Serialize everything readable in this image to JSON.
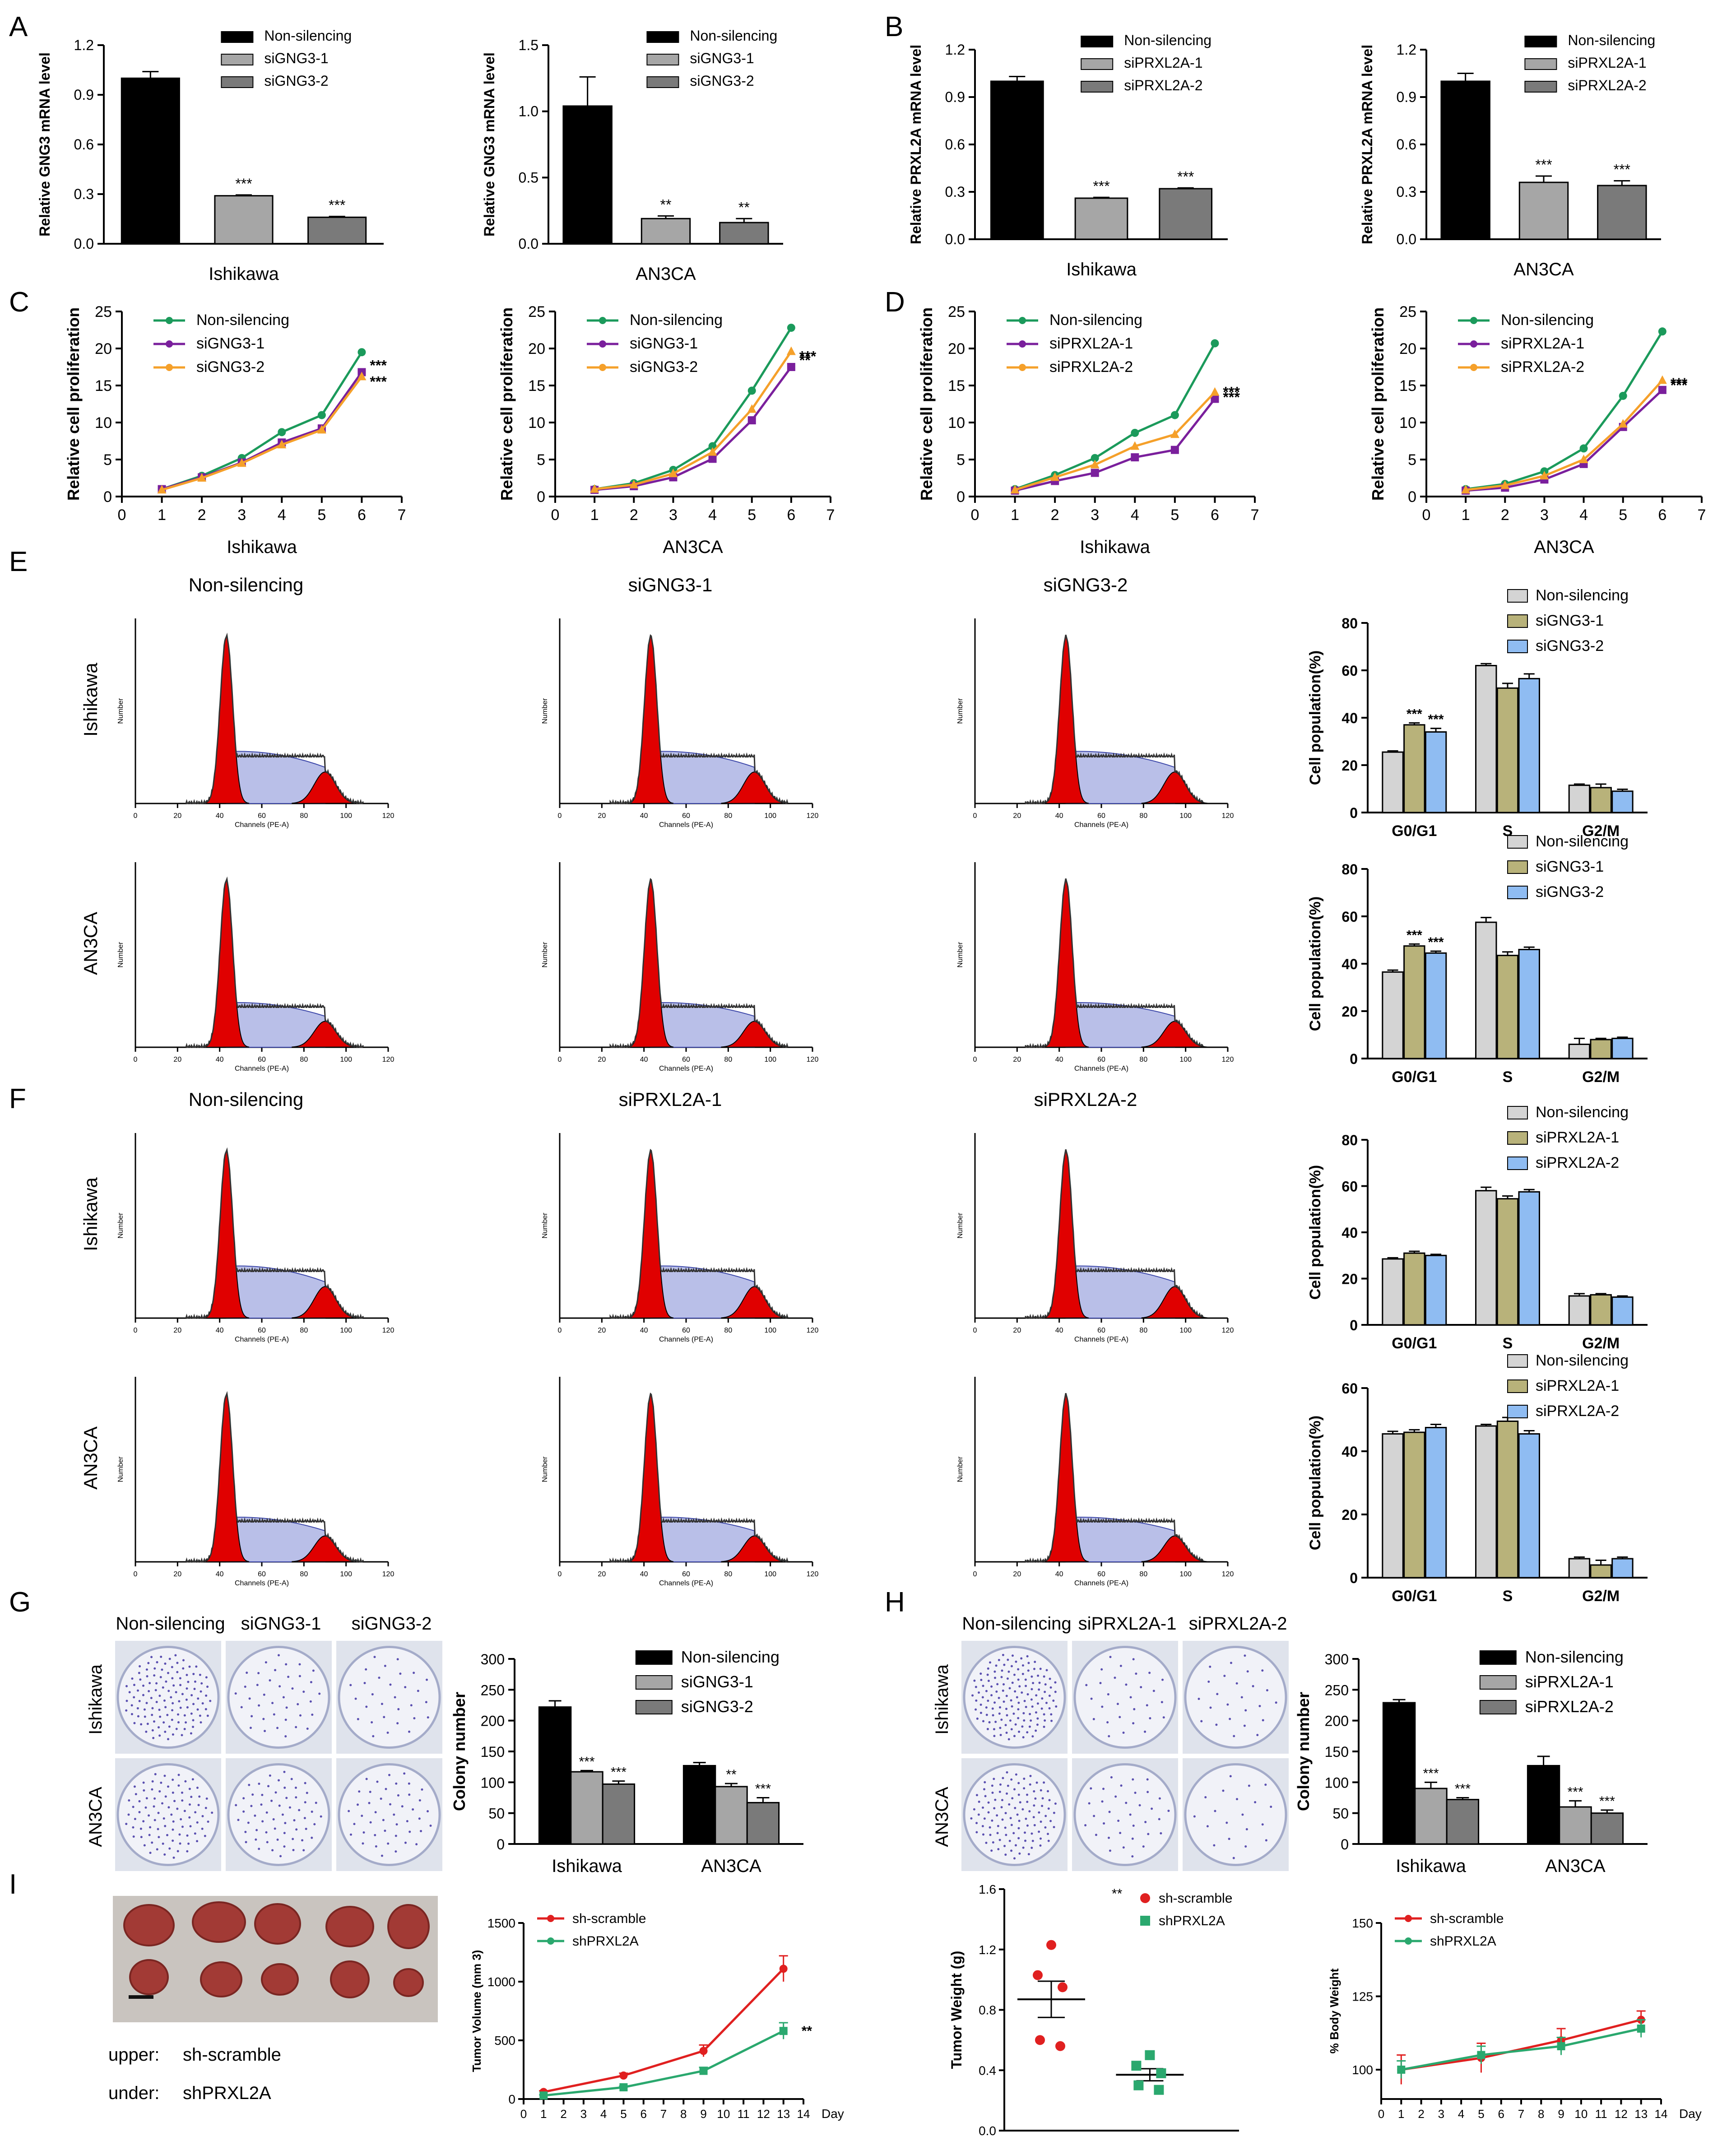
{
  "colors": {
    "black": "#000000",
    "light_gray": "#a6a6a6",
    "mid_gray": "#7a7a7a",
    "green": "#1b9a5b",
    "purple": "#7a1f9c",
    "orange": "#f5a02a",
    "cc_gray": "#d4d4d4",
    "cc_olive": "#b8b27a",
    "cc_blue": "#8fbcf2",
    "red": "#e02020",
    "teal_green": "#2aa86e",
    "histo_red": "#e00000",
    "histo_blue": "#b9bfe8"
  },
  "panel_letters": {
    "a": "A",
    "b": "B",
    "c": "C",
    "d": "D",
    "e": "E",
    "f": "F",
    "g": "G",
    "h": "H",
    "i": "I"
  },
  "panel_A": {
    "legend": [
      "Non-silencing",
      "siGNG3-1",
      "siGNG3-2"
    ],
    "charts": [
      {
        "ylabel": "Relative GNG3 mRNA level",
        "xlabel": "Ishikawa",
        "ticks": [
          "0.0",
          "0.3",
          "0.6",
          "0.9",
          "1.2"
        ],
        "ymax": 1.2,
        "values": [
          1.0,
          0.29,
          0.16
        ],
        "errors": [
          0.04,
          0.005,
          0.005
        ],
        "sig": [
          "",
          "***",
          "***"
        ]
      },
      {
        "ylabel": "Relative GNG3 mRNA level",
        "xlabel": "AN3CA",
        "ticks": [
          "0.0",
          "0.5",
          "1.0",
          "1.5"
        ],
        "ymax": 1.5,
        "values": [
          1.04,
          0.19,
          0.16
        ],
        "errors": [
          0.22,
          0.02,
          0.03
        ],
        "sig": [
          "",
          "**",
          "**"
        ]
      }
    ]
  },
  "panel_B": {
    "legend": [
      "Non-silencing",
      "siPRXL2A-1",
      "siPRXL2A-2"
    ],
    "charts": [
      {
        "ylabel": "Relative PRXL2A mRNA level",
        "xlabel": "Ishikawa",
        "ticks": [
          "0.0",
          "0.3",
          "0.6",
          "0.9",
          "1.2"
        ],
        "ymax": 1.2,
        "values": [
          1.0,
          0.26,
          0.32
        ],
        "errors": [
          0.03,
          0.005,
          0.005
        ],
        "sig": [
          "",
          "***",
          "***"
        ]
      },
      {
        "ylabel": "Relative PRXL2A mRNA level",
        "xlabel": "AN3CA",
        "ticks": [
          "0.0",
          "0.3",
          "0.6",
          "0.9",
          "1.2"
        ],
        "ymax": 1.2,
        "values": [
          1.0,
          0.36,
          0.34
        ],
        "errors": [
          0.05,
          0.04,
          0.03
        ],
        "sig": [
          "",
          "***",
          "***"
        ]
      }
    ]
  },
  "panel_C": {
    "legend": [
      "Non-silencing",
      "siGNG3-1",
      "siGNG3-2"
    ],
    "ylabel": "Relative cell proliferation",
    "charts": [
      {
        "xlabel": "Ishikawa",
        "yticks": [
          "0",
          "5",
          "10",
          "15",
          "20",
          "25"
        ],
        "xticks": [
          "0",
          "1",
          "2",
          "3",
          "4",
          "5",
          "6",
          "7"
        ],
        "ymax": 25,
        "series": [
          [
            1,
            2.8,
            5.2,
            8.7,
            11,
            19.5
          ],
          [
            1,
            2.6,
            4.6,
            7.3,
            9.2,
            16.8
          ],
          [
            0.9,
            2.5,
            4.5,
            7.0,
            9.0,
            16.2
          ]
        ],
        "sig": [
          "***",
          "***"
        ]
      },
      {
        "xlabel": "AN3CA",
        "yticks": [
          "0",
          "5",
          "10",
          "15",
          "20",
          "25"
        ],
        "xticks": [
          "0",
          "1",
          "2",
          "3",
          "4",
          "5",
          "6",
          "7"
        ],
        "ymax": 25,
        "series": [
          [
            1,
            1.8,
            3.6,
            6.8,
            14.3,
            22.8
          ],
          [
            0.9,
            1.4,
            2.6,
            5.1,
            10.3,
            17.5
          ],
          [
            1,
            1.6,
            3.1,
            6.0,
            11.8,
            19.6
          ]
        ],
        "sig": [
          "**",
          "***"
        ]
      }
    ]
  },
  "panel_D": {
    "legend": [
      "Non-silencing",
      "siPRXL2A-1",
      "siPRXL2A-2"
    ],
    "ylabel": "Relative cell proliferation",
    "charts": [
      {
        "xlabel": "Ishikawa",
        "yticks": [
          "0",
          "5",
          "10",
          "15",
          "20",
          "25"
        ],
        "xticks": [
          "0",
          "1",
          "2",
          "3",
          "4",
          "5",
          "6",
          "7"
        ],
        "ymax": 25,
        "series": [
          [
            1,
            2.9,
            5.2,
            8.6,
            11,
            20.7
          ],
          [
            0.8,
            2.1,
            3.2,
            5.3,
            6.3,
            13.2
          ],
          [
            0.9,
            2.6,
            4.3,
            6.8,
            8.4,
            14.1
          ]
        ],
        "sig": [
          "***",
          "***"
        ]
      },
      {
        "xlabel": "AN3CA",
        "yticks": [
          "0",
          "5",
          "10",
          "15",
          "20",
          "25"
        ],
        "xticks": [
          "0",
          "1",
          "2",
          "3",
          "4",
          "5",
          "6",
          "7"
        ],
        "ymax": 25,
        "series": [
          [
            1,
            1.7,
            3.4,
            6.5,
            13.6,
            22.3
          ],
          [
            0.8,
            1.2,
            2.3,
            4.4,
            9.4,
            14.4
          ],
          [
            0.9,
            1.5,
            2.8,
            5.0,
            9.8,
            15.7
          ]
        ],
        "sig": [
          "***",
          "***"
        ]
      }
    ]
  },
  "panel_E": {
    "titles": [
      "Non-silencing",
      "siGNG3-1",
      "siGNG3-2"
    ],
    "rows": [
      "Ishikawa",
      "AN3CA"
    ],
    "histo_xlabel": "Channels (PE-A)",
    "histo_ylabel": "Number",
    "histo_xticks": [
      "0",
      "20",
      "40",
      "60",
      "80",
      "100",
      "120"
    ],
    "legend": [
      "Non-silencing",
      "siGNG3-1",
      "siGNG3-2"
    ],
    "ylabel": "Cell population(%)",
    "categories": [
      "G0/G1",
      "S",
      "G2/M"
    ],
    "charts": [
      {
        "yticks": [
          "0",
          "20",
          "40",
          "60",
          "80"
        ],
        "ymax": 80,
        "series": [
          [
            25.5,
            62,
            11.5
          ],
          [
            37,
            52.5,
            10.5
          ],
          [
            34,
            56.5,
            9
          ]
        ],
        "errors": [
          [
            0.5,
            0.8,
            0.5
          ],
          [
            0.8,
            2,
            1.5
          ],
          [
            1.5,
            2,
            0.8
          ]
        ],
        "sig": [
          [
            "",
            "***",
            "***"
          ],
          [
            "",
            "",
            ""
          ],
          [
            "",
            "",
            ""
          ]
        ]
      },
      {
        "yticks": [
          "0",
          "20",
          "40",
          "60",
          "80"
        ],
        "ymax": 80,
        "series": [
          [
            36.5,
            57.5,
            6
          ],
          [
            47.5,
            43.5,
            8
          ],
          [
            44.5,
            46,
            8.5
          ]
        ],
        "errors": [
          [
            0.8,
            2,
            2.5
          ],
          [
            0.8,
            1.5,
            0.5
          ],
          [
            0.8,
            1,
            0.5
          ]
        ],
        "sig": [
          [
            "",
            "***",
            "***"
          ],
          [
            "",
            "",
            ""
          ],
          [
            "",
            "",
            ""
          ]
        ]
      }
    ]
  },
  "panel_F": {
    "titles": [
      "Non-silencing",
      "siPRXL2A-1",
      "siPRXL2A-2"
    ],
    "rows": [
      "Ishikawa",
      "AN3CA"
    ],
    "histo_xlabel": "Channels (PE-A)",
    "histo_ylabel": "Number",
    "histo_xticks": [
      "0",
      "20",
      "40",
      "60",
      "80",
      "100",
      "120"
    ],
    "legend": [
      "Non-silencing",
      "siPRXL2A-1",
      "siPRXL2A-2"
    ],
    "ylabel": "Cell population(%)",
    "categories": [
      "G0/G1",
      "S",
      "G2/M"
    ],
    "charts": [
      {
        "yticks": [
          "0",
          "20",
          "40",
          "60",
          "80"
        ],
        "ymax": 80,
        "series": [
          [
            28.5,
            58,
            12.5
          ],
          [
            31,
            54.5,
            13
          ],
          [
            30,
            57.5,
            12
          ]
        ],
        "errors": [
          [
            0.5,
            1.5,
            1
          ],
          [
            0.8,
            1.2,
            0.5
          ],
          [
            0.5,
            1,
            0.5
          ]
        ]
      },
      {
        "yticks": [
          "0",
          "20",
          "40",
          "60"
        ],
        "ymax": 60,
        "series": [
          [
            45.5,
            48,
            6
          ],
          [
            46,
            49.5,
            4
          ],
          [
            47.5,
            45.5,
            6
          ]
        ],
        "errors": [
          [
            0.8,
            0.5,
            0.5
          ],
          [
            0.8,
            1.2,
            1.5
          ],
          [
            1,
            1,
            0.5
          ]
        ]
      }
    ]
  },
  "panel_G": {
    "titles": [
      "Non-silencing",
      "siGNG3-1",
      "siGNG3-2"
    ],
    "rows": [
      "Ishikawa",
      "AN3CA"
    ],
    "legend": [
      "Non-silencing",
      "siGNG3-1",
      "siGNG3-2"
    ],
    "ylabel": "Colony number",
    "yticks": [
      "0",
      "50",
      "100",
      "150",
      "200",
      "250",
      "300"
    ],
    "ymax": 300,
    "groups": [
      "Ishikawa",
      "AN3CA"
    ],
    "values": [
      [
        222,
        117,
        97
      ],
      [
        127,
        93,
        67
      ]
    ],
    "errors": [
      [
        10,
        2,
        5
      ],
      [
        5,
        5,
        8
      ]
    ],
    "sig": [
      [
        "",
        "***",
        "***"
      ],
      [
        "",
        "**",
        "***"
      ]
    ],
    "dots": [
      [
        120,
        40,
        30
      ],
      [
        90,
        60,
        45
      ]
    ]
  },
  "panel_H": {
    "titles": [
      "Non-silencing",
      "siPRXL2A-1",
      "siPRXL2A-2"
    ],
    "rows": [
      "Ishikawa",
      "AN3CA"
    ],
    "legend": [
      "Non-silencing",
      "siPRXL2A-1",
      "siPRXL2A-2"
    ],
    "ylabel": "Colony number",
    "yticks": [
      "0",
      "50",
      "100",
      "150",
      "200",
      "250",
      "300"
    ],
    "ymax": 300,
    "groups": [
      "Ishikawa",
      "AN3CA"
    ],
    "values": [
      [
        229,
        90,
        72
      ],
      [
        127,
        60,
        50
      ]
    ],
    "errors": [
      [
        5,
        10,
        3
      ],
      [
        15,
        10,
        5
      ]
    ],
    "sig": [
      [
        "",
        "***",
        "***"
      ],
      [
        "",
        "***",
        "***"
      ]
    ],
    "dots": [
      [
        140,
        30,
        25
      ],
      [
        110,
        35,
        20
      ]
    ]
  },
  "panel_I": {
    "caption_upper_label": "upper:",
    "caption_upper_value": "sh-scramble",
    "caption_under_label": "under:",
    "caption_under_value": "shPRXL2A",
    "volume": {
      "legend": [
        "sh-scramble",
        "shPRXL2A"
      ],
      "ylabel": "Tumor Volume (mm 3)",
      "xlabel": "Day",
      "yticks": [
        "0",
        "500",
        "1000",
        "1500"
      ],
      "ymax": 1500,
      "xticks": [
        "0",
        "1",
        "2",
        "3",
        "4",
        "5",
        "6",
        "7",
        "8",
        "9",
        "10",
        "11",
        "12",
        "13",
        "14"
      ],
      "x": [
        1,
        5,
        9,
        13
      ],
      "series": [
        [
          60,
          200,
          410,
          1110
        ],
        [
          30,
          100,
          240,
          580
        ]
      ],
      "errors": [
        [
          10,
          20,
          50,
          110
        ],
        [
          5,
          10,
          30,
          70
        ]
      ],
      "sig": "**"
    },
    "weight": {
      "legend": [
        "sh-scramble",
        "shPRXL2A"
      ],
      "ylabel": "Tumor Weight (g)",
      "yticks": [
        "0.0",
        "0.4",
        "0.8",
        "1.2",
        "1.6"
      ],
      "ymax": 1.6,
      "sig": "**",
      "scramble_points": [
        1.23,
        1.03,
        0.95,
        0.6,
        0.56
      ],
      "scramble_mean": 0.87,
      "scramble_sem": 0.12,
      "prxl2a_points": [
        0.5,
        0.43,
        0.38,
        0.3,
        0.27
      ],
      "prxl2a_mean": 0.37,
      "prxl2a_sem": 0.04
    },
    "body": {
      "legend": [
        "sh-scramble",
        "shPRXL2A"
      ],
      "ylabel": "% Body Weight",
      "xlabel": "Day",
      "yticks": [
        "100",
        "125",
        "150"
      ],
      "ymin": 90,
      "ymax": 150,
      "xticks": [
        "0",
        "1",
        "2",
        "3",
        "4",
        "5",
        "6",
        "7",
        "8",
        "9",
        "10",
        "11",
        "12",
        "13",
        "14"
      ],
      "x": [
        1,
        5,
        9,
        13
      ],
      "series": [
        [
          100,
          104,
          110,
          117
        ],
        [
          100,
          105,
          108,
          114
        ]
      ],
      "errors": [
        [
          5,
          5,
          4,
          3
        ],
        [
          3,
          3,
          3,
          3
        ]
      ]
    }
  }
}
